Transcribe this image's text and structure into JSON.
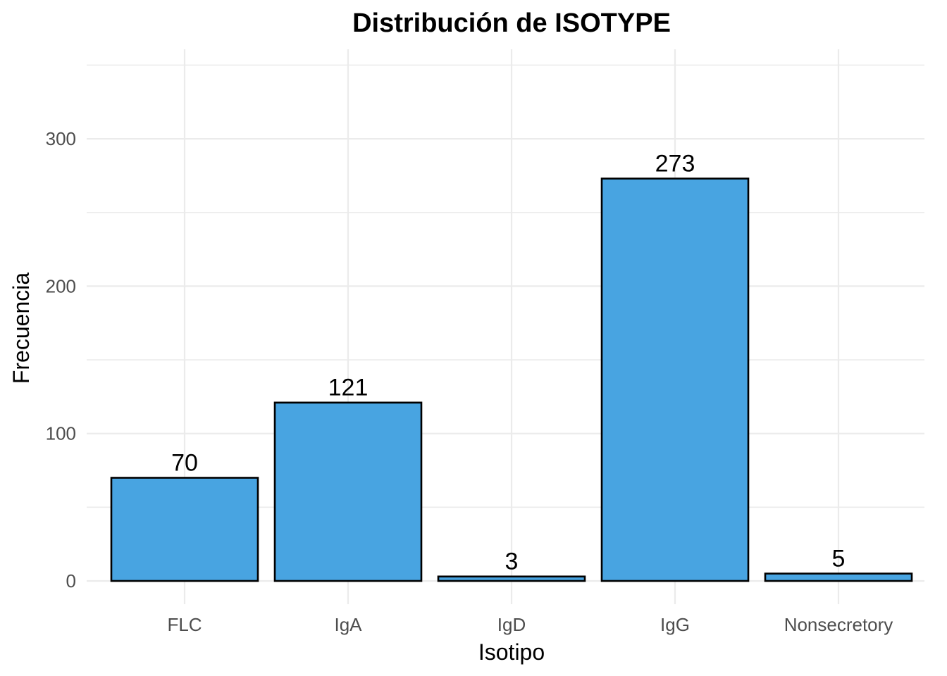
{
  "chart_data": {
    "type": "bar",
    "title": "Distribución de ISOTYPE",
    "xlabel": "Isotipo",
    "ylabel": "Frecuencia",
    "categories": [
      "FLC",
      "IgA",
      "IgD",
      "IgG",
      "Nonsecretory"
    ],
    "values": [
      70,
      121,
      3,
      273,
      5
    ],
    "ylim": [
      0,
      350
    ],
    "yticks": [
      0,
      100,
      200,
      300
    ],
    "grid": true,
    "legend": "none",
    "colors": {
      "bar_fill": "#48A4E1",
      "bar_stroke": "#000000"
    }
  }
}
